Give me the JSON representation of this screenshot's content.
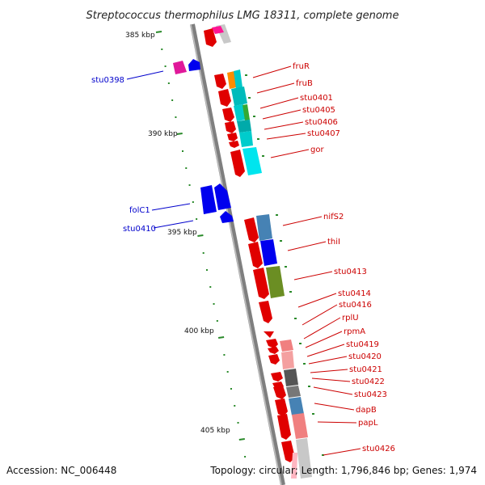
{
  "title": "Streptococcus thermophilus LMG 18311, complete genome",
  "footer": {
    "accession": "Accession: NC_006448",
    "stats": "Topology: circular; Length: 1,796,846 bp; Genes: 1,974"
  },
  "colors": {
    "backbone": "#7f7f7f",
    "tick": "#2a8a2a",
    "label_red": "#cc0000",
    "label_blue": "#0000cc"
  },
  "scale_labels": [
    "385 kbp",
    "390 kbp",
    "395 kbp",
    "400 kbp",
    "405 kbp"
  ],
  "gene_labels_right": [
    "fruR",
    "fruB",
    "stu0401",
    "stu0405",
    "stu0406",
    "stu0407",
    "gor",
    "nifS2",
    "thiI",
    "stu0413",
    "stu0414",
    "stu0416",
    "rplU",
    "rpmA",
    "stu0419",
    "stu0420",
    "stu0421",
    "stu0422",
    "stu0423",
    "dapB",
    "papL",
    "stu0426"
  ],
  "gene_labels_left": [
    "stu0398",
    "folC1",
    "stu0410"
  ]
}
